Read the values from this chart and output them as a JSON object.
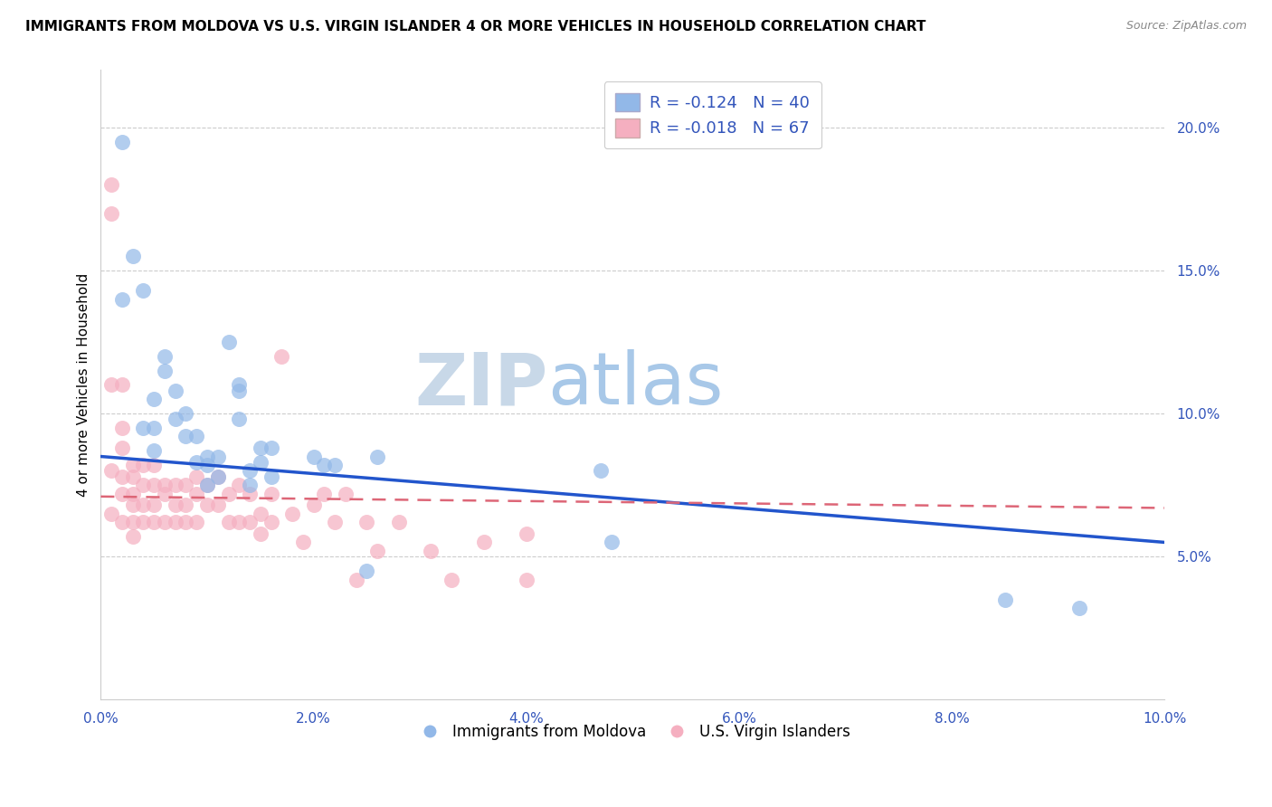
{
  "title": "IMMIGRANTS FROM MOLDOVA VS U.S. VIRGIN ISLANDER 4 OR MORE VEHICLES IN HOUSEHOLD CORRELATION CHART",
  "source": "Source: ZipAtlas.com",
  "ylabel": "4 or more Vehicles in Household",
  "xlim": [
    0.0,
    0.1
  ],
  "ylim": [
    0.0,
    0.22
  ],
  "xticks": [
    0.0,
    0.02,
    0.04,
    0.06,
    0.08,
    0.1
  ],
  "yticks": [
    0.05,
    0.1,
    0.15,
    0.2
  ],
  "xtick_labels": [
    "0.0%",
    "2.0%",
    "4.0%",
    "6.0%",
    "8.0%",
    "10.0%"
  ],
  "ytick_labels": [
    "5.0%",
    "10.0%",
    "15.0%",
    "20.0%"
  ],
  "blue_color": "#92b8e8",
  "pink_color": "#f5afc0",
  "blue_line_color": "#2255cc",
  "pink_line_color": "#dd6677",
  "legend_R_blue": "-0.124",
  "legend_N_blue": "40",
  "legend_R_pink": "-0.018",
  "legend_N_pink": "67",
  "watermark_zip": "ZIP",
  "watermark_atlas": "atlas",
  "watermark_zip_color": "#c8d8e8",
  "watermark_atlas_color": "#a8c8e8",
  "label_blue": "Immigrants from Moldova",
  "label_pink": "U.S. Virgin Islanders",
  "blue_x": [
    0.002,
    0.002,
    0.003,
    0.004,
    0.004,
    0.005,
    0.005,
    0.005,
    0.006,
    0.006,
    0.007,
    0.007,
    0.008,
    0.008,
    0.009,
    0.009,
    0.01,
    0.01,
    0.01,
    0.011,
    0.011,
    0.012,
    0.013,
    0.013,
    0.013,
    0.014,
    0.014,
    0.015,
    0.015,
    0.016,
    0.016,
    0.02,
    0.021,
    0.022,
    0.025,
    0.026,
    0.047,
    0.048,
    0.085,
    0.092
  ],
  "blue_y": [
    0.195,
    0.14,
    0.155,
    0.143,
    0.095,
    0.105,
    0.095,
    0.087,
    0.12,
    0.115,
    0.108,
    0.098,
    0.1,
    0.092,
    0.092,
    0.083,
    0.085,
    0.082,
    0.075,
    0.085,
    0.078,
    0.125,
    0.11,
    0.108,
    0.098,
    0.08,
    0.075,
    0.088,
    0.083,
    0.088,
    0.078,
    0.085,
    0.082,
    0.082,
    0.045,
    0.085,
    0.08,
    0.055,
    0.035,
    0.032
  ],
  "pink_x": [
    0.001,
    0.001,
    0.001,
    0.001,
    0.001,
    0.002,
    0.002,
    0.002,
    0.002,
    0.002,
    0.002,
    0.003,
    0.003,
    0.003,
    0.003,
    0.003,
    0.003,
    0.004,
    0.004,
    0.004,
    0.004,
    0.005,
    0.005,
    0.005,
    0.005,
    0.006,
    0.006,
    0.006,
    0.007,
    0.007,
    0.007,
    0.008,
    0.008,
    0.008,
    0.009,
    0.009,
    0.009,
    0.01,
    0.01,
    0.011,
    0.011,
    0.012,
    0.012,
    0.013,
    0.013,
    0.014,
    0.014,
    0.015,
    0.015,
    0.016,
    0.016,
    0.017,
    0.018,
    0.019,
    0.02,
    0.021,
    0.022,
    0.023,
    0.024,
    0.025,
    0.026,
    0.028,
    0.031,
    0.033,
    0.036,
    0.04,
    0.04
  ],
  "pink_y": [
    0.18,
    0.17,
    0.11,
    0.08,
    0.065,
    0.11,
    0.095,
    0.088,
    0.078,
    0.072,
    0.062,
    0.082,
    0.078,
    0.072,
    0.068,
    0.062,
    0.057,
    0.082,
    0.075,
    0.068,
    0.062,
    0.082,
    0.075,
    0.068,
    0.062,
    0.075,
    0.072,
    0.062,
    0.075,
    0.068,
    0.062,
    0.075,
    0.068,
    0.062,
    0.078,
    0.072,
    0.062,
    0.075,
    0.068,
    0.078,
    0.068,
    0.072,
    0.062,
    0.075,
    0.062,
    0.072,
    0.062,
    0.065,
    0.058,
    0.072,
    0.062,
    0.12,
    0.065,
    0.055,
    0.068,
    0.072,
    0.062,
    0.072,
    0.042,
    0.062,
    0.052,
    0.062,
    0.052,
    0.042,
    0.055,
    0.058,
    0.042
  ],
  "blue_trendline_x": [
    0.0,
    0.1
  ],
  "blue_trendline_y": [
    0.085,
    0.055
  ],
  "pink_trendline_x": [
    0.0,
    0.1
  ],
  "pink_trendline_y": [
    0.071,
    0.067
  ]
}
